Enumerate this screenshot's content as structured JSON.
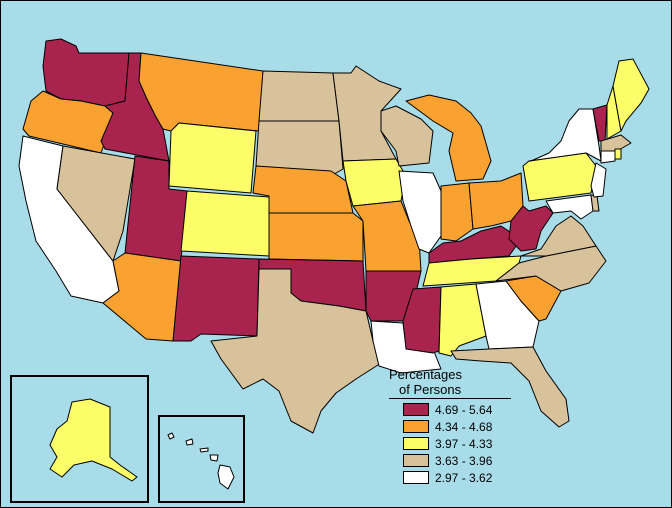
{
  "legend": {
    "title_line1": "Percentages",
    "title_line2": "of Persons",
    "items": [
      {
        "label": "4.69 - 5.64",
        "color": "#a8244f"
      },
      {
        "label": "4.34 - 4.68",
        "color": "#f9a231"
      },
      {
        "label": "3.97 - 4.33",
        "color": "#fdfd6a"
      },
      {
        "label": "3.63 - 3.96",
        "color": "#d8c29b"
      },
      {
        "label": "2.97 - 3.62",
        "color": "#ffffff"
      }
    ]
  },
  "colors": {
    "water": "#a8dce9",
    "border": "#000000"
  },
  "states": {
    "WA": "4.69 - 5.64",
    "OR": "4.34 - 4.68",
    "CA": "2.97 - 3.62",
    "ID": "4.69 - 5.64",
    "NV": "3.63 - 3.96",
    "UT": "4.69 - 5.64",
    "AZ": "4.34 - 4.68",
    "MT": "4.34 - 4.68",
    "WY": "3.97 - 4.33",
    "CO": "3.97 - 4.33",
    "NM": "4.69 - 5.64",
    "ND": "3.63 - 3.96",
    "SD": "3.63 - 3.96",
    "NE": "4.34 - 4.68",
    "KS": "4.34 - 4.68",
    "OK": "4.69 - 5.64",
    "TX": "3.63 - 3.96",
    "MN": "3.63 - 3.96",
    "IA": "3.97 - 4.33",
    "MO": "4.34 - 4.68",
    "AR": "4.69 - 5.64",
    "LA": "2.97 - 3.62",
    "WI": "3.63 - 3.96",
    "IL": "2.97 - 3.62",
    "MI": "4.34 - 4.68",
    "IN": "4.34 - 4.68",
    "OH": "4.34 - 4.68",
    "KY": "4.69 - 5.64",
    "TN": "3.97 - 4.33",
    "MS": "4.69 - 5.64",
    "AL": "3.97 - 4.33",
    "GA": "2.97 - 3.62",
    "FL": "3.63 - 3.96",
    "SC": "4.34 - 4.68",
    "NC": "3.63 - 3.96",
    "VA": "3.63 - 3.96",
    "WV": "4.69 - 5.64",
    "PA": "3.97 - 4.33",
    "NY": "2.97 - 3.62",
    "VT": "4.69 - 5.64",
    "NH": "3.97 - 4.33",
    "ME": "3.97 - 4.33",
    "MA": "3.63 - 3.96",
    "CT": "2.97 - 3.62",
    "RI": "3.97 - 4.33",
    "NJ": "2.97 - 3.62",
    "DE": "3.63 - 3.96",
    "MD": "2.97 - 3.62",
    "AK": "3.97 - 4.33",
    "HI": "2.97 - 3.62"
  }
}
